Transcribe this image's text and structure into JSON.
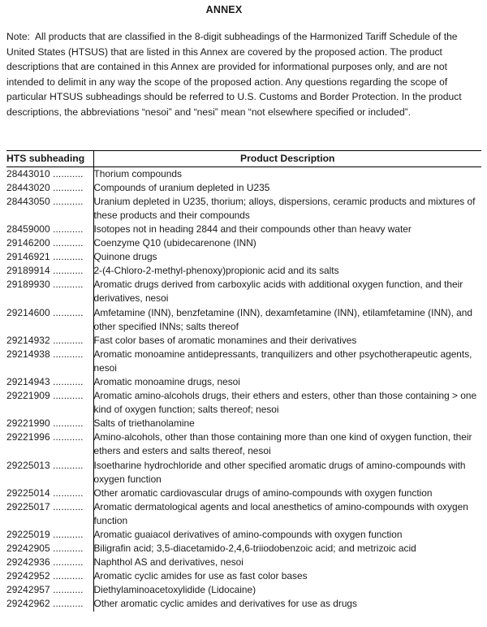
{
  "page": {
    "title": "ANNEX",
    "note": "Note:  All products that are classified in the 8-digit subheadings of the Harmonized Tariff Schedule of the United States (HTSUS) that are listed in this Annex are covered by the proposed action. The product descriptions that are contained in this Annex are provided for informational purposes only, and are not intended to delimit in any way the scope of the proposed action. Any questions regarding the scope of particular HTSUS subheadings should be referred to U.S. Customs and Border Protection. In the product descriptions, the abbreviations “nesoi” and “nesi” mean “not elsewhere specified or included”."
  },
  "table": {
    "headers": [
      "HTS subheading",
      "Product Description"
    ],
    "leader_dots": "...........",
    "rows": [
      {
        "code": "28443010",
        "description": "Thorium compounds"
      },
      {
        "code": "28443020",
        "description": "Compounds of uranium depleted in U235"
      },
      {
        "code": "28443050",
        "description": "Uranium depleted in U235, thorium; alloys, dispersions, ceramic products and mixtures of these products and their compounds"
      },
      {
        "code": "28459000",
        "description": "Isotopes not in heading 2844 and their compounds other than heavy water"
      },
      {
        "code": "29146200",
        "description": "Coenzyme Q10 (ubidecarenone (INN)"
      },
      {
        "code": "29146921",
        "description": "Quinone drugs"
      },
      {
        "code": "29189914",
        "description": "2-(4-Chloro-2-methyl-phenoxy)propionic acid and its salts"
      },
      {
        "code": "29189930",
        "description": "Aromatic drugs derived from carboxylic acids with additional oxygen function, and their derivatives, nesoi"
      },
      {
        "code": "29214600",
        "description": "Amfetamine (INN), benzfetamine (INN), dexamfetamine (INN), etilamfetamine (INN), and other specified INNs; salts thereof"
      },
      {
        "code": "29214932",
        "description": "Fast color bases of aromatic monamines and their derivatives"
      },
      {
        "code": "29214938",
        "description": "Aromatic monoamine antidepressants, tranquilizers and other psychotherapeutic agents, nesoi"
      },
      {
        "code": "29214943",
        "description": "Aromatic monoamine drugs, nesoi"
      },
      {
        "code": "29221909",
        "description": "Aromatic amino-alcohols drugs, their ethers and esters, other than those containing > one kind of oxygen function; salts thereof; nesoi"
      },
      {
        "code": "29221990",
        "description": "Salts of triethanolamine"
      },
      {
        "code": "29221996",
        "description": "Amino-alcohols, other than those containing more than one kind of oxygen function, their ethers and esters and salts thereof, nesoi"
      },
      {
        "code": "29225013",
        "description": "Isoetharine hydrochloride and other specified aromatic drugs of amino-compounds with oxygen function"
      },
      {
        "code": "29225014",
        "description": "Other aromatic cardiovascular drugs of amino-compounds with oxygen function"
      },
      {
        "code": "29225017",
        "description": "Aromatic dermatological agents and local anesthetics of amino-compounds with oxygen function"
      },
      {
        "code": "29225019",
        "description": "Aromatic guaiacol derivatives of amino-compounds with oxygen function"
      },
      {
        "code": "29242905",
        "description": "Biligrafin acid; 3,5-diacetamido-2,4,6-triiodobenzoic acid; and metrizoic acid"
      },
      {
        "code": "29242936",
        "description": "Naphthol AS and derivatives, nesoi"
      },
      {
        "code": "29242952",
        "description": "Aromatic cyclic amides for use as fast color bases"
      },
      {
        "code": "29242957",
        "description": "Diethylaminoacetoxylidide (Lidocaine)"
      },
      {
        "code": "29242962",
        "description": "Other aromatic cyclic amides and derivatives for use as drugs"
      }
    ]
  },
  "colors": {
    "text": "#1a1a1a",
    "background": "#ffffff",
    "border": "#000000"
  }
}
